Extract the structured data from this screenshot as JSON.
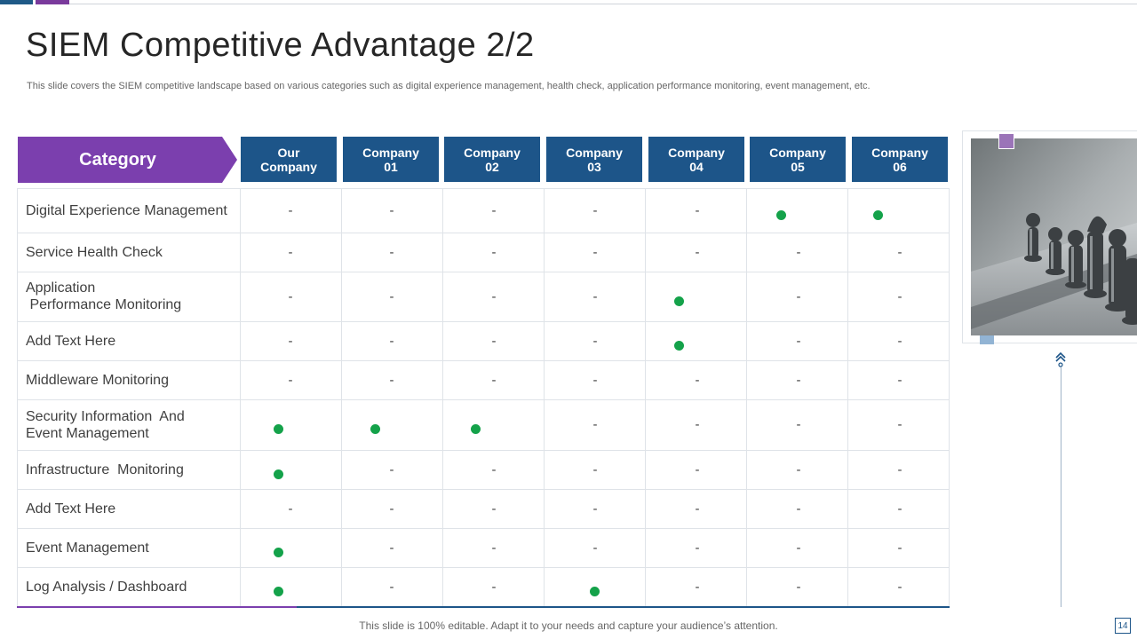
{
  "slide": {
    "title": "SIEM Competitive  Advantage 2/2",
    "subtitle": "This slide covers the SIEM competitive landscape based on various categories such as digital experience management, health check, application performance monitoring, event management, etc.",
    "footer": "This slide is 100% editable. Adapt it to your needs and capture your audience’s attention.",
    "page_number": "14"
  },
  "colors": {
    "purple": "#7b3fae",
    "blue": "#1d5589",
    "dot_green": "#14a24a"
  },
  "table": {
    "category_header": "Category",
    "columns": [
      [
        "Our",
        "Company"
      ],
      [
        "Company",
        "01"
      ],
      [
        "Company",
        "02"
      ],
      [
        "Company",
        "03"
      ],
      [
        "Company",
        "04"
      ],
      [
        "Company",
        "05"
      ],
      [
        "Company",
        "06"
      ]
    ],
    "rows": [
      {
        "label": "Digital Experience Management",
        "cells": [
          "dash",
          "dash",
          "dash",
          "dash",
          "dash",
          "dot",
          "dot"
        ]
      },
      {
        "label": "Service Health Check",
        "cells": [
          "dash",
          "dash",
          "dash",
          "dash",
          "dash",
          "dash",
          "dash"
        ]
      },
      {
        "label": "Application\n Performance Monitoring",
        "cells": [
          "dash",
          "dash",
          "dash",
          "dash",
          "dot",
          "dash",
          "dash"
        ]
      },
      {
        "label": "Add Text Here",
        "cells": [
          "dash",
          "dash",
          "dash",
          "dash",
          "dot",
          "dash",
          "dash"
        ]
      },
      {
        "label": "Middleware Monitoring",
        "cells": [
          "dash",
          "dash",
          "dash",
          "dash",
          "dash",
          "dash",
          "dash"
        ]
      },
      {
        "label": "Security Information  And\nEvent Management",
        "cells": [
          "dot",
          "dot",
          "dot",
          "dash",
          "dash",
          "dash",
          "dash"
        ]
      },
      {
        "label": "Infrastructure  Monitoring",
        "cells": [
          "dot",
          "dash",
          "dash",
          "dash",
          "dash",
          "dash",
          "dash"
        ]
      },
      {
        "label": "Add Text Here",
        "cells": [
          "dash",
          "dash",
          "dash",
          "dash",
          "dash",
          "dash",
          "dash"
        ]
      },
      {
        "label": "Event Management",
        "cells": [
          "dot",
          "dash",
          "dash",
          "dash",
          "dash",
          "dash",
          "dash"
        ]
      },
      {
        "label": "Log Analysis / Dashboard",
        "cells": [
          "dot",
          "dash",
          "dash",
          "dot",
          "dash",
          "dash",
          "dash"
        ]
      }
    ],
    "dash_symbol": "-"
  },
  "image": {
    "icon": "chess-pieces-photo"
  }
}
